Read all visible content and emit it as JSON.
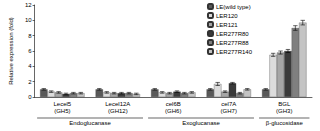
{
  "chart_data": {
    "type": "bar",
    "y_label": "Relative expression (fold)",
    "categories": [
      "Lecel5 (GH5)",
      "Lecel12A (GH12)",
      "cel6B (GH6)",
      "cel7A (GH7)",
      "BGL (GH3)"
    ],
    "groups": [
      {
        "label": "Endoglucanase",
        "categories": [
          "Lecel5 (GH5)",
          "Lecel12A (GH12)"
        ]
      },
      {
        "label": "Exoglucanase",
        "categories": [
          "cel6B (GH6)",
          "cel7A (GH7)"
        ]
      },
      {
        "label": "β-glucosidase",
        "categories": [
          "BGL (GH3)"
        ]
      }
    ],
    "series": [
      {
        "name": "LE(wild type)",
        "color": "#595959",
        "values": [
          1.0,
          1.0,
          1.0,
          1.0,
          1.0
        ],
        "errors": [
          0.1,
          0.1,
          0.1,
          0.1,
          0.1
        ]
      },
      {
        "name": "LER120",
        "color": "#dcdcdc",
        "values": [
          0.7,
          0.6,
          0.6,
          1.7,
          5.5
        ],
        "errors": [
          0.1,
          0.1,
          0.1,
          0.2,
          0.2
        ]
      },
      {
        "name": "LER121",
        "color": "#a6a6a6",
        "values": [
          0.6,
          0.5,
          0.5,
          0.7,
          5.8
        ],
        "errors": [
          0.1,
          0.1,
          0.1,
          0.1,
          0.2
        ]
      },
      {
        "name": "LER277R80",
        "color": "#3a3a3a",
        "values": [
          0.4,
          0.5,
          0.7,
          1.8,
          6.0
        ],
        "errors": [
          0.1,
          0.1,
          0.1,
          0.1,
          0.2
        ]
      },
      {
        "name": "LER277R88",
        "color": "#7f7f7f",
        "values": [
          0.5,
          0.5,
          0.5,
          0.5,
          9.0
        ],
        "errors": [
          0.1,
          0.1,
          0.1,
          0.1,
          0.3
        ]
      },
      {
        "name": "LER277R140",
        "color": "#c4c4c4",
        "values": [
          0.5,
          0.4,
          0.6,
          1.0,
          9.7
        ],
        "errors": [
          0.1,
          0.1,
          0.1,
          0.1,
          0.3
        ]
      }
    ],
    "ylim": [
      0,
      12
    ],
    "yticks": [
      0,
      2,
      4,
      6,
      8,
      10,
      12
    ],
    "grid": false,
    "legend": "upper right"
  }
}
